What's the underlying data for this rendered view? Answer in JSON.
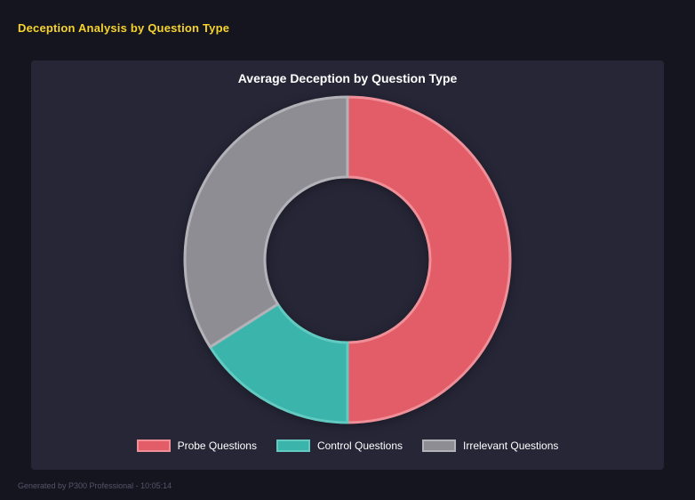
{
  "page": {
    "title": "Deception Analysis by Question Type",
    "footer": "Generated by P300 Professional - 10:05:14"
  },
  "chart_data": {
    "type": "pie",
    "variant": "donut",
    "title": "Average Deception by Question Type",
    "labels": [
      "Probe Questions",
      "Control Questions",
      "Irrelevant Questions"
    ],
    "values": [
      50,
      16,
      34
    ],
    "unit": "percent",
    "colors": [
      "#e25d68",
      "#3bb4ac",
      "#8d8d93"
    ],
    "border_colors": [
      "#ef9099",
      "#63cac2",
      "#b2b2b8"
    ],
    "legend_position": "bottom",
    "cutout_percent": 51,
    "start_angle_deg": 0,
    "direction": "clockwise"
  }
}
